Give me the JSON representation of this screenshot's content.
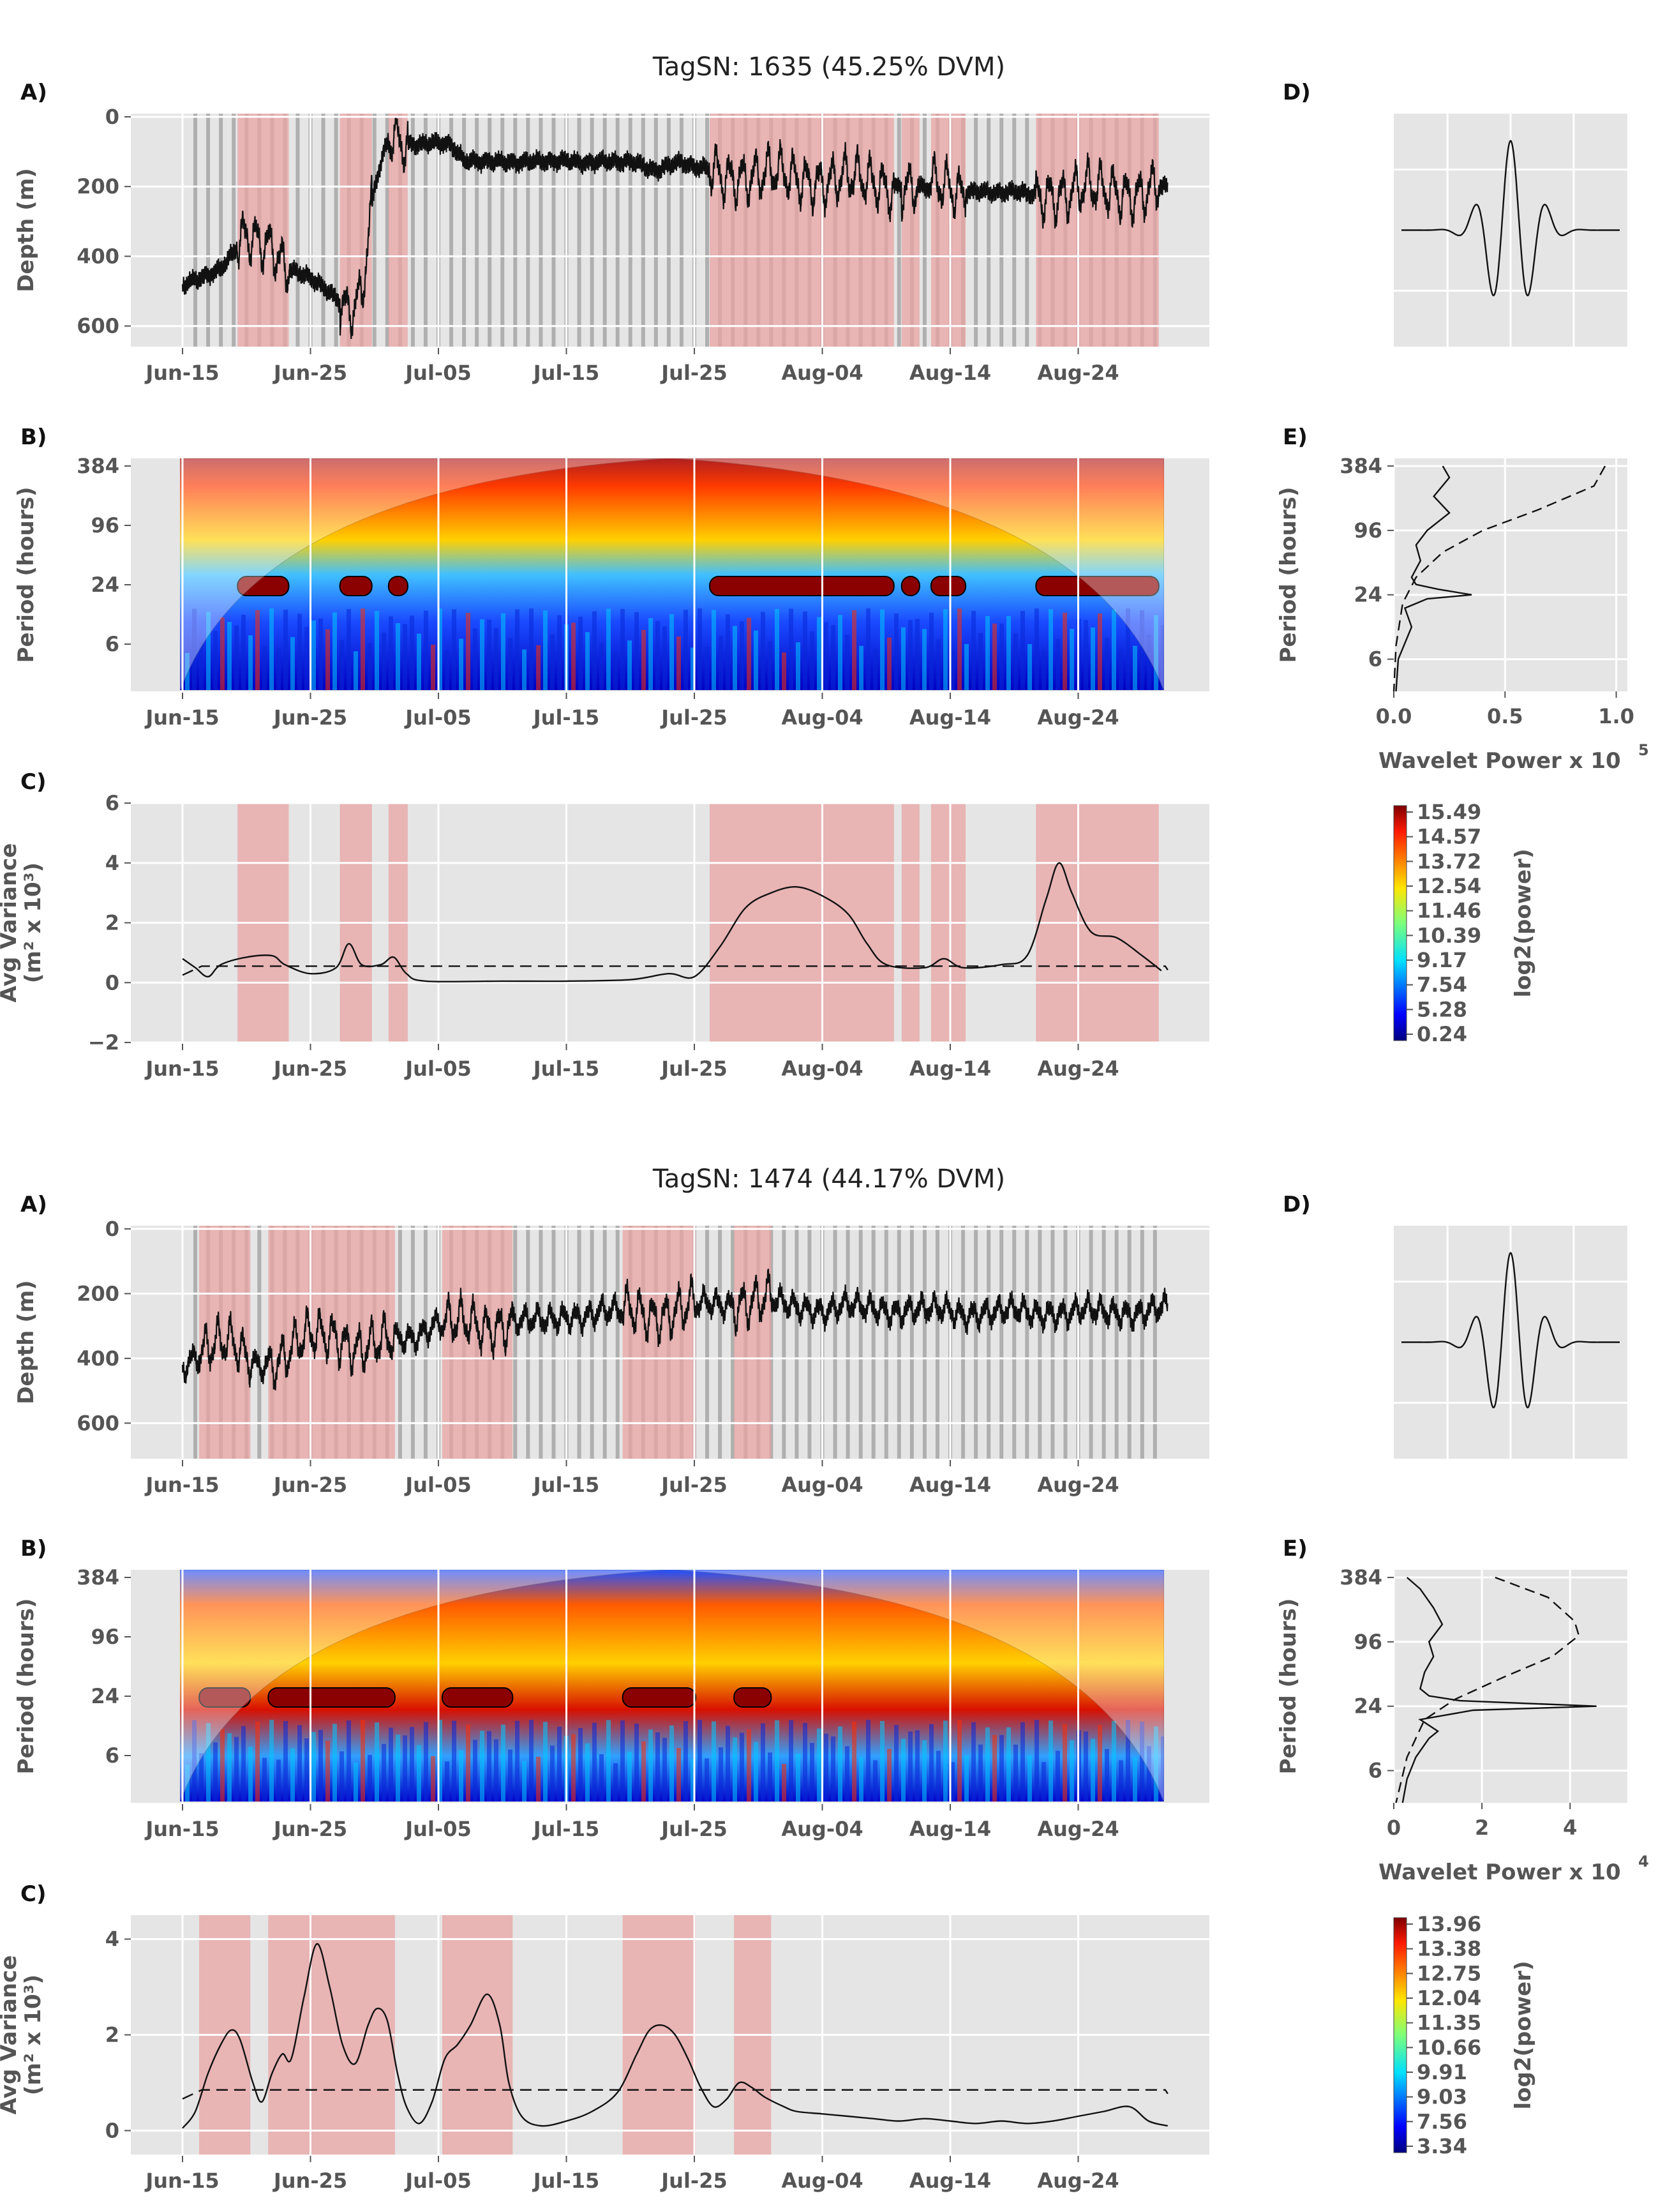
{
  "figure": {
    "panel_labels": {
      "a": "A)",
      "b": "B)",
      "c": "C)",
      "d": "D)",
      "e": "E)"
    },
    "colors": {
      "background": "#e5e5e5",
      "grid": "#ffffff",
      "shade": "#e8a3a3",
      "night_bar": "#a9a9a9",
      "line": "#111111",
      "tick": "#555555"
    },
    "x_ticks": [
      "Jun-15",
      "Jun-25",
      "Jul-05",
      "Jul-15",
      "Jul-25",
      "Aug-04",
      "Aug-14",
      "Aug-24"
    ],
    "period_ticks": [
      "384",
      "96",
      "24",
      "6"
    ],
    "axis_labels": {
      "depth": "Depth (m)",
      "period": "Period (hours)",
      "variance_line1": "Avg Variance",
      "variance_line2": "(m² x 10³)",
      "power_base": "Wavelet Power x 10",
      "colorbar": "log2(power)"
    }
  },
  "chart_data": [
    {
      "type": "line",
      "title": "TagSN: 1635 (45.25% DVM)",
      "panel_a": {
        "ylabel": "Depth (m)",
        "y_inverted": true,
        "ylim": [
          0,
          650
        ],
        "yticks": [
          "0",
          "200",
          "400",
          "600"
        ],
        "depth_profile_days_m": [
          [
            0,
            480
          ],
          [
            3,
            440
          ],
          [
            4,
            390
          ],
          [
            5,
            330
          ],
          [
            7,
            360
          ],
          [
            8,
            440
          ],
          [
            10,
            460
          ],
          [
            12,
            520
          ],
          [
            13,
            540
          ],
          [
            14,
            520
          ],
          [
            15,
            200
          ],
          [
            16,
            70
          ],
          [
            18,
            75
          ],
          [
            20,
            75
          ],
          [
            21,
            80
          ],
          [
            22,
            130
          ],
          [
            24,
            125
          ],
          [
            26,
            130
          ],
          [
            28,
            130
          ],
          [
            30,
            125
          ],
          [
            32,
            130
          ],
          [
            34,
            130
          ],
          [
            35,
            130
          ],
          [
            36,
            140
          ],
          [
            37,
            150
          ],
          [
            38,
            140
          ],
          [
            39,
            130
          ],
          [
            40,
            145
          ],
          [
            42,
            160
          ],
          [
            45,
            170
          ],
          [
            48,
            175
          ],
          [
            51,
            180
          ],
          [
            54,
            190
          ],
          [
            57,
            200
          ],
          [
            60,
            210
          ],
          [
            63,
            215
          ],
          [
            66,
            220
          ],
          [
            69,
            215
          ],
          [
            72,
            215
          ],
          [
            75,
            210
          ],
          [
            77,
            200
          ]
        ],
        "shaded_ranges_days": [
          [
            4.3,
            8.3
          ],
          [
            12.3,
            14.8
          ],
          [
            16.1,
            17.6
          ],
          [
            41.2,
            55.6
          ],
          [
            56.2,
            57.6
          ],
          [
            58.5,
            61.2
          ],
          [
            66.7,
            76.3
          ]
        ]
      },
      "panel_b": {
        "ylabel": "Period (hours)",
        "ytick_labels": [
          "384",
          "96",
          "24",
          "6"
        ],
        "colorbar_label": "log2(power)",
        "colorbar_ticks": [
          "15.49",
          "14.57",
          "13.72",
          "12.54",
          "11.46",
          "10.39",
          "9.17",
          "7.54",
          "5.28",
          "0.24"
        ]
      },
      "panel_c": {
        "ylabel": "Avg Variance (m² x 10³)",
        "ylim": [
          -2,
          6
        ],
        "yticks": [
          "6",
          "4",
          "2",
          "0",
          "−2"
        ],
        "variance_days": [
          [
            0,
            0.8
          ],
          [
            1,
            0.5
          ],
          [
            2,
            0.2
          ],
          [
            3,
            0.6
          ],
          [
            5,
            0.85
          ],
          [
            7,
            0.9
          ],
          [
            8,
            0.6
          ],
          [
            10,
            0.3
          ],
          [
            12,
            0.5
          ],
          [
            13,
            1.3
          ],
          [
            14,
            0.6
          ],
          [
            15.5,
            0.6
          ],
          [
            16.5,
            0.85
          ],
          [
            17.5,
            0.3
          ],
          [
            19,
            0.05
          ],
          [
            25,
            0.05
          ],
          [
            30,
            0.05
          ],
          [
            35,
            0.1
          ],
          [
            38,
            0.3
          ],
          [
            40,
            0.2
          ],
          [
            42,
            1.2
          ],
          [
            44,
            2.5
          ],
          [
            46,
            3.0
          ],
          [
            48,
            3.2
          ],
          [
            50,
            2.9
          ],
          [
            52,
            2.3
          ],
          [
            53.5,
            1.3
          ],
          [
            55,
            0.6
          ],
          [
            58,
            0.5
          ],
          [
            59.5,
            0.8
          ],
          [
            61,
            0.5
          ],
          [
            64,
            0.6
          ],
          [
            66,
            0.9
          ],
          [
            67.5,
            2.8
          ],
          [
            68.5,
            4.0
          ],
          [
            69.5,
            3.0
          ],
          [
            71,
            1.7
          ],
          [
            73,
            1.5
          ],
          [
            75,
            0.9
          ],
          [
            76.5,
            0.4
          ]
        ],
        "significance_level": 0.55,
        "shaded_ranges_days": [
          [
            4.3,
            8.3
          ],
          [
            12.3,
            14.8
          ],
          [
            16.1,
            17.6
          ],
          [
            41.2,
            55.6
          ],
          [
            56.2,
            57.6
          ],
          [
            58.5,
            61.2
          ],
          [
            66.7,
            76.3
          ]
        ]
      },
      "panel_d": {
        "description": "wavelet function"
      },
      "panel_e": {
        "ylabel": "Period (hours)",
        "xlabel_exponent": "5",
        "xlim": [
          0,
          1.05
        ],
        "xticks": [
          "0.0",
          "0.5",
          "1.0"
        ],
        "global_power": [
          [
            0.22,
            384
          ],
          [
            0.25,
            300
          ],
          [
            0.18,
            200
          ],
          [
            0.25,
            140
          ],
          [
            0.15,
            96
          ],
          [
            0.1,
            70
          ],
          [
            0.12,
            50
          ],
          [
            0.08,
            35
          ],
          [
            0.1,
            30
          ],
          [
            0.2,
            27
          ],
          [
            0.35,
            24
          ],
          [
            0.15,
            22
          ],
          [
            0.05,
            18
          ],
          [
            0.08,
            12
          ],
          [
            0.02,
            6
          ],
          [
            0.01,
            3
          ]
        ],
        "significance": [
          [
            0.95,
            384
          ],
          [
            0.9,
            250
          ],
          [
            0.65,
            150
          ],
          [
            0.4,
            96
          ],
          [
            0.22,
            60
          ],
          [
            0.1,
            35
          ],
          [
            0.04,
            20
          ],
          [
            0.01,
            8
          ],
          [
            0.0,
            3
          ]
        ]
      }
    },
    {
      "type": "line",
      "title": "TagSN: 1474 (44.17% DVM)",
      "panel_a": {
        "ylabel": "Depth (m)",
        "y_inverted": true,
        "ylim": [
          0,
          700
        ],
        "yticks": [
          "0",
          "200",
          "400",
          "600"
        ],
        "depth_profile_days_m": [
          [
            0,
            420
          ],
          [
            2,
            370
          ],
          [
            4,
            360
          ],
          [
            6,
            420
          ],
          [
            8,
            400
          ],
          [
            10,
            330
          ],
          [
            12,
            320
          ],
          [
            14,
            380
          ],
          [
            16,
            350
          ],
          [
            18,
            330
          ],
          [
            20,
            290
          ],
          [
            22,
            300
          ],
          [
            24,
            300
          ],
          [
            26,
            280
          ],
          [
            28,
            290
          ],
          [
            30,
            270
          ],
          [
            32,
            260
          ],
          [
            35,
            255
          ],
          [
            38,
            260
          ],
          [
            40,
            240
          ],
          [
            42,
            230
          ],
          [
            45,
            220
          ],
          [
            48,
            240
          ],
          [
            50,
            250
          ],
          [
            52,
            240
          ],
          [
            55,
            250
          ],
          [
            58,
            250
          ],
          [
            61,
            260
          ],
          [
            64,
            255
          ],
          [
            67,
            260
          ],
          [
            70,
            255
          ],
          [
            73,
            260
          ],
          [
            76,
            250
          ],
          [
            77,
            245
          ]
        ],
        "shaded_ranges_days": [
          [
            1.3,
            5.3
          ],
          [
            6.7,
            16.6
          ],
          [
            20.3,
            25.8
          ],
          [
            34.4,
            40.1
          ],
          [
            43.1,
            46.0
          ]
        ]
      },
      "panel_b": {
        "ylabel": "Period (hours)",
        "ytick_labels": [
          "384",
          "96",
          "24",
          "6"
        ],
        "colorbar_label": "log2(power)",
        "colorbar_ticks": [
          "13.96",
          "13.38",
          "12.75",
          "12.04",
          "11.35",
          "10.66",
          "9.91",
          "9.03",
          "7.56",
          "3.34"
        ]
      },
      "panel_c": {
        "ylabel": "Avg Variance (m² x 10³)",
        "ylim": [
          -0.5,
          4.5
        ],
        "yticks": [
          "4",
          "2",
          "0"
        ],
        "variance_days": [
          [
            0,
            0.05
          ],
          [
            1,
            0.4
          ],
          [
            2,
            1.2
          ],
          [
            3,
            1.8
          ],
          [
            3.8,
            2.1
          ],
          [
            4.5,
            1.9
          ],
          [
            5.5,
            1.0
          ],
          [
            6.2,
            0.6
          ],
          [
            7,
            1.2
          ],
          [
            7.8,
            1.6
          ],
          [
            8.5,
            1.5
          ],
          [
            9.5,
            2.8
          ],
          [
            10.5,
            3.9
          ],
          [
            11.5,
            3.0
          ],
          [
            12.5,
            1.8
          ],
          [
            13.5,
            1.4
          ],
          [
            14.5,
            2.2
          ],
          [
            15.2,
            2.55
          ],
          [
            16,
            2.3
          ],
          [
            16.8,
            1.2
          ],
          [
            17.5,
            0.5
          ],
          [
            18.5,
            0.15
          ],
          [
            19.5,
            0.6
          ],
          [
            20.5,
            1.5
          ],
          [
            21.5,
            1.8
          ],
          [
            22.5,
            2.2
          ],
          [
            23.8,
            2.85
          ],
          [
            24.8,
            2.2
          ],
          [
            25.5,
            1.0
          ],
          [
            26.5,
            0.3
          ],
          [
            28,
            0.1
          ],
          [
            30,
            0.2
          ],
          [
            32,
            0.4
          ],
          [
            34,
            0.8
          ],
          [
            35.5,
            1.6
          ],
          [
            36.5,
            2.1
          ],
          [
            37.5,
            2.2
          ],
          [
            38.5,
            2.0
          ],
          [
            39.5,
            1.5
          ],
          [
            40.5,
            0.9
          ],
          [
            41.5,
            0.5
          ],
          [
            42.5,
            0.65
          ],
          [
            43.5,
            1.0
          ],
          [
            44.5,
            0.9
          ],
          [
            45.5,
            0.7
          ],
          [
            47,
            0.5
          ],
          [
            48,
            0.4
          ],
          [
            50,
            0.35
          ],
          [
            52,
            0.3
          ],
          [
            54,
            0.25
          ],
          [
            56,
            0.2
          ],
          [
            58,
            0.25
          ],
          [
            60,
            0.2
          ],
          [
            62,
            0.15
          ],
          [
            64,
            0.2
          ],
          [
            66,
            0.15
          ],
          [
            68,
            0.2
          ],
          [
            70,
            0.3
          ],
          [
            72,
            0.4
          ],
          [
            74,
            0.5
          ],
          [
            75.5,
            0.2
          ],
          [
            77,
            0.1
          ]
        ],
        "significance_level": 0.85,
        "shaded_ranges_days": [
          [
            1.3,
            5.3
          ],
          [
            6.7,
            16.6
          ],
          [
            20.3,
            25.8
          ],
          [
            34.4,
            40.1
          ],
          [
            43.1,
            46.0
          ]
        ]
      },
      "panel_d": {
        "description": "wavelet function"
      },
      "panel_e": {
        "ylabel": "Period (hours)",
        "xlabel_exponent": "4",
        "xlim": [
          0,
          5.3
        ],
        "xticks": [
          "0",
          "2",
          "4"
        ],
        "global_power": [
          [
            0.3,
            384
          ],
          [
            0.6,
            300
          ],
          [
            0.9,
            200
          ],
          [
            1.1,
            140
          ],
          [
            0.8,
            96
          ],
          [
            0.9,
            70
          ],
          [
            0.7,
            50
          ],
          [
            0.6,
            35
          ],
          [
            0.8,
            30
          ],
          [
            1.5,
            27
          ],
          [
            4.6,
            24
          ],
          [
            1.8,
            22
          ],
          [
            0.6,
            18
          ],
          [
            1.0,
            14
          ],
          [
            0.8,
            12
          ],
          [
            0.5,
            8
          ],
          [
            0.3,
            5
          ],
          [
            0.2,
            3
          ]
        ],
        "significance": [
          [
            2.3,
            384
          ],
          [
            3.5,
            250
          ],
          [
            4.1,
            150
          ],
          [
            4.2,
            110
          ],
          [
            3.6,
            70
          ],
          [
            2.5,
            45
          ],
          [
            1.4,
            28
          ],
          [
            0.7,
            18
          ],
          [
            0.3,
            8
          ],
          [
            0.05,
            3
          ]
        ]
      }
    }
  ]
}
